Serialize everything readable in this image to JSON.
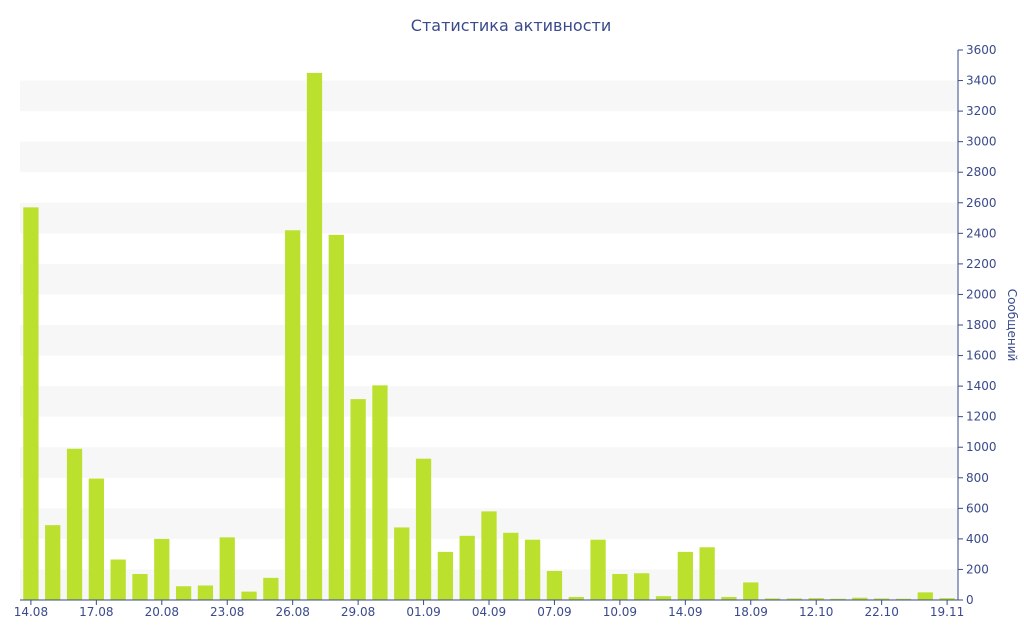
{
  "chart_data": {
    "type": "bar",
    "title": "Статистика активности",
    "ylabel": "Сообщений",
    "ylim": [
      0,
      3600
    ],
    "y_ticks": [
      0,
      200,
      400,
      600,
      800,
      1000,
      1200,
      1400,
      1600,
      1800,
      2000,
      2200,
      2400,
      2600,
      2800,
      3000,
      3200,
      3400,
      3600
    ],
    "y_axis_side": "right",
    "x_tick_labels": [
      {
        "index": 0,
        "label": "14.08"
      },
      {
        "index": 3,
        "label": "17.08"
      },
      {
        "index": 6,
        "label": "20.08"
      },
      {
        "index": 9,
        "label": "23.08"
      },
      {
        "index": 12,
        "label": "26.08"
      },
      {
        "index": 15,
        "label": "29.08"
      },
      {
        "index": 18,
        "label": "01.09"
      },
      {
        "index": 21,
        "label": "04.09"
      },
      {
        "index": 24,
        "label": "07.09"
      },
      {
        "index": 27,
        "label": "10.09"
      },
      {
        "index": 30,
        "label": "14.09"
      },
      {
        "index": 33,
        "label": "18.09"
      },
      {
        "index": 36,
        "label": "12.10"
      },
      {
        "index": 39,
        "label": "22.10"
      },
      {
        "index": 42,
        "label": "19.11"
      }
    ],
    "values": [
      2570,
      490,
      990,
      795,
      265,
      170,
      400,
      90,
      95,
      410,
      55,
      145,
      2420,
      3450,
      2390,
      1315,
      1405,
      475,
      925,
      315,
      420,
      580,
      440,
      395,
      190,
      20,
      395,
      170,
      175,
      25,
      315,
      345,
      20,
      115,
      10,
      10,
      12,
      8,
      15,
      10,
      8,
      50,
      12
    ],
    "grid": "horizontal bands",
    "colors": {
      "bar": "#bbe02e",
      "band": "#f7f7f7",
      "axis": "#3a4a8c"
    }
  }
}
